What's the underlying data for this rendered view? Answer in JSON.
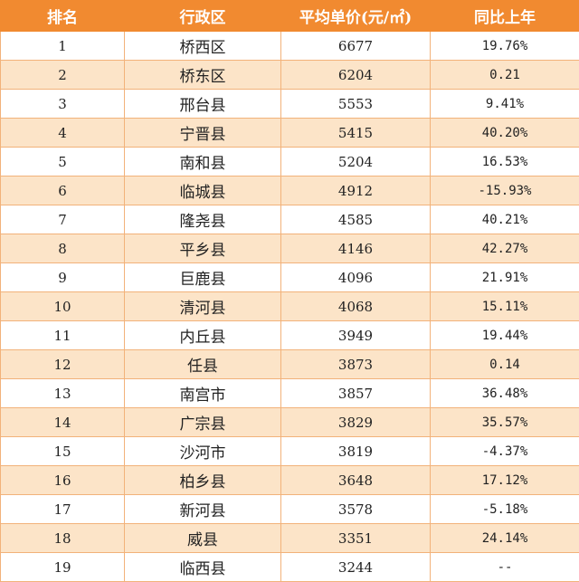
{
  "headers": {
    "rank": "排名",
    "district": "行政区",
    "price": "平均单价(元/㎡)",
    "yoy": "同比上年"
  },
  "rows": [
    {
      "rank": "1",
      "district": "桥西区",
      "price": "6677",
      "yoy": "19.76%"
    },
    {
      "rank": "2",
      "district": "桥东区",
      "price": "6204",
      "yoy": "0.21"
    },
    {
      "rank": "3",
      "district": "邢台县",
      "price": "5553",
      "yoy": "9.41%"
    },
    {
      "rank": "4",
      "district": "宁晋县",
      "price": "5415",
      "yoy": "40.20%"
    },
    {
      "rank": "5",
      "district": "南和县",
      "price": "5204",
      "yoy": "16.53%"
    },
    {
      "rank": "6",
      "district": "临城县",
      "price": "4912",
      "yoy": "-15.93%"
    },
    {
      "rank": "7",
      "district": "隆尧县",
      "price": "4585",
      "yoy": "40.21%"
    },
    {
      "rank": "8",
      "district": "平乡县",
      "price": "4146",
      "yoy": "42.27%"
    },
    {
      "rank": "9",
      "district": "巨鹿县",
      "price": "4096",
      "yoy": "21.91%"
    },
    {
      "rank": "10",
      "district": "清河县",
      "price": "4068",
      "yoy": "15.11%"
    },
    {
      "rank": "11",
      "district": "内丘县",
      "price": "3949",
      "yoy": "19.44%"
    },
    {
      "rank": "12",
      "district": "任县",
      "price": "3873",
      "yoy": "0.14"
    },
    {
      "rank": "13",
      "district": "南宫市",
      "price": "3857",
      "yoy": "36.48%"
    },
    {
      "rank": "14",
      "district": "广宗县",
      "price": "3829",
      "yoy": "35.57%"
    },
    {
      "rank": "15",
      "district": "沙河市",
      "price": "3819",
      "yoy": "-4.37%"
    },
    {
      "rank": "16",
      "district": "柏乡县",
      "price": "3648",
      "yoy": "17.12%"
    },
    {
      "rank": "17",
      "district": "新河县",
      "price": "3578",
      "yoy": "-5.18%"
    },
    {
      "rank": "18",
      "district": "威县",
      "price": "3351",
      "yoy": "24.14%"
    },
    {
      "rank": "19",
      "district": "临西县",
      "price": "3244",
      "yoy": "--"
    }
  ]
}
